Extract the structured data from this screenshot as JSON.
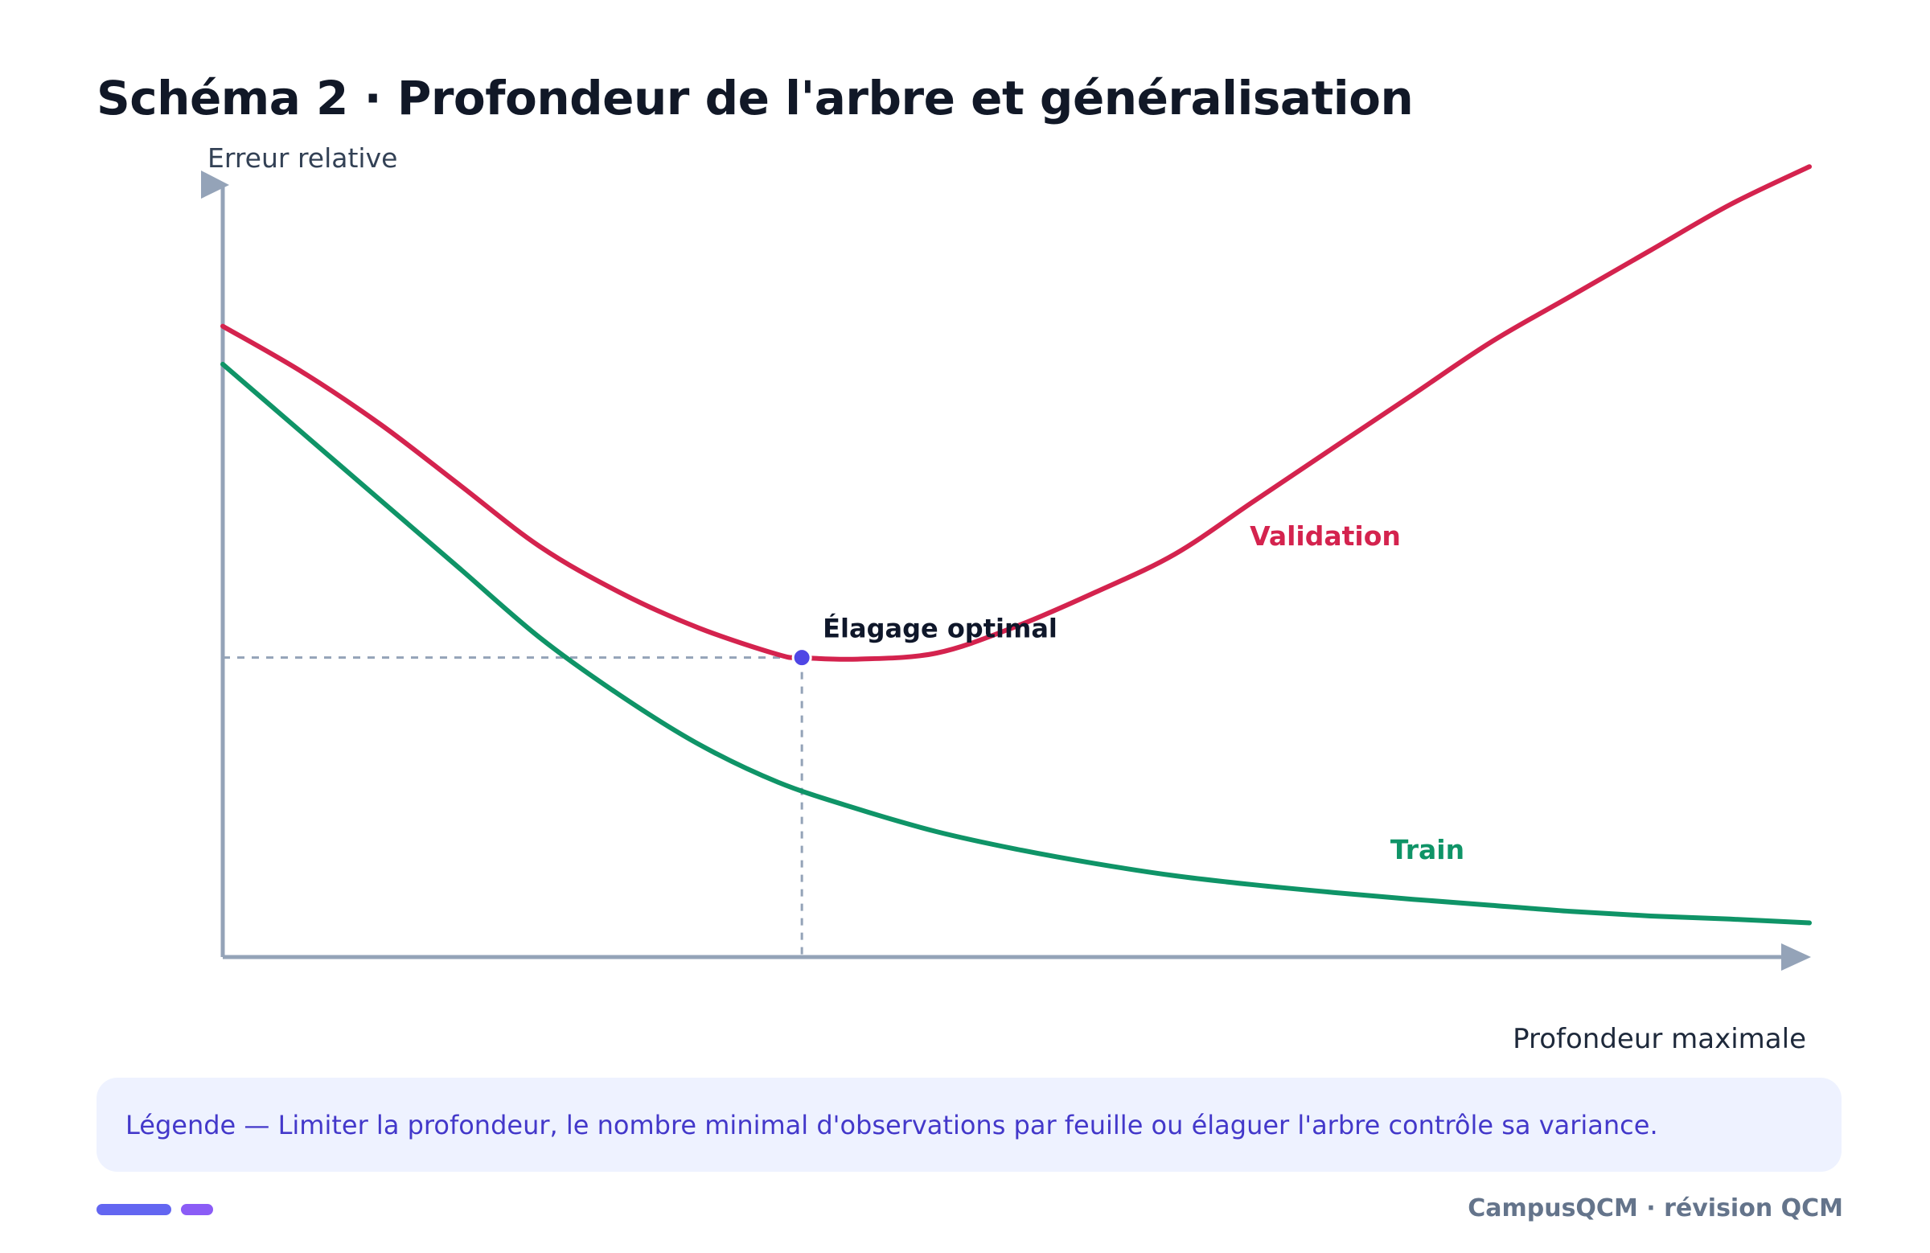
{
  "title": "Schéma 2 · Profondeur de l'arbre et généralisation",
  "legend_text": "Légende — Limiter la profondeur, le nombre minimal d'observations par feuille ou élaguer l'arbre contrôle sa variance.",
  "footer": "CampusQCM · révision QCM",
  "colors": {
    "validation": "#d4234e",
    "train": "#0f9467",
    "optimum": "#4f46e5",
    "axis": "#94a3b8",
    "pill_1": "#6366f1",
    "pill_2": "#8b5cf6"
  },
  "chart_data": {
    "type": "line",
    "xlabel": "Profondeur maximale",
    "ylabel": "Erreur relative",
    "xlim": [
      0,
      10
    ],
    "ylim": [
      0,
      10
    ],
    "grid": false,
    "series": [
      {
        "name": "Validation",
        "color_key": "validation",
        "x": [
          0,
          0.5,
          1,
          1.5,
          2,
          2.5,
          3,
          3.5,
          3.65,
          4,
          4.5,
          5,
          5.5,
          6,
          6.5,
          7,
          7.5,
          8,
          8.5,
          9,
          9.5,
          10
        ],
        "y": [
          8.3,
          7.7,
          7.0,
          6.2,
          5.4,
          4.8,
          4.33,
          3.98,
          3.94,
          3.92,
          4.0,
          4.35,
          4.8,
          5.3,
          6.0,
          6.7,
          7.4,
          8.1,
          8.7,
          9.3,
          9.9,
          10.4
        ]
      },
      {
        "name": "Train",
        "color_key": "train",
        "x": [
          0,
          0.5,
          1,
          1.5,
          2,
          2.5,
          3,
          3.5,
          4,
          4.5,
          5,
          5.5,
          6,
          6.5,
          7,
          7.5,
          8,
          8.5,
          9,
          9.5,
          10
        ],
        "y": [
          7.8,
          6.9,
          6.0,
          5.1,
          4.2,
          3.45,
          2.8,
          2.3,
          1.95,
          1.65,
          1.42,
          1.23,
          1.07,
          0.95,
          0.85,
          0.76,
          0.68,
          0.6,
          0.54,
          0.5,
          0.45
        ]
      }
    ],
    "annotations": [
      {
        "text": "Élagage optimal",
        "x": 3.65,
        "y": 3.94
      }
    ]
  }
}
